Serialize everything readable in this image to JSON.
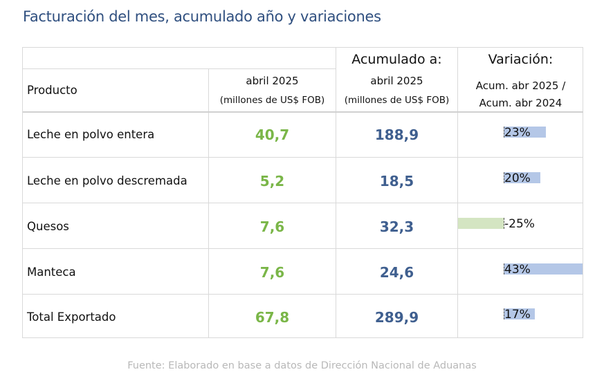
{
  "title": "Facturación del mes, acumulado año y variaciones",
  "header": {
    "producto": "Producto",
    "month_label": "abril 2025",
    "month_unit": "(millones de US$ FOB)",
    "acum_title": "Acumulado a:",
    "acum_label": "abril 2025",
    "acum_unit": "(millones de US$ FOB)",
    "var_title": "Variación:",
    "var_line1": "Acum. abr 2025 /",
    "var_line2": "Acum. abr 2024"
  },
  "rows": [
    {
      "product": "Leche en polvo entera",
      "month": "40,7",
      "acum": "188,9",
      "variation": "23%",
      "variation_value": 23
    },
    {
      "product": "Leche en polvo descremada",
      "month": "5,2",
      "acum": "18,5",
      "variation": "20%",
      "variation_value": 20
    },
    {
      "product": "Quesos",
      "month": "7,6",
      "acum": "32,3",
      "variation": "-25%",
      "variation_value": -25
    },
    {
      "product": "Manteca",
      "month": "7,6",
      "acum": "24,6",
      "variation": "43%",
      "variation_value": 43
    },
    {
      "product": "Total Exportado",
      "month": "67,8",
      "acum": "289,9",
      "variation": "17%",
      "variation_value": 17
    }
  ],
  "colors": {
    "title": "#2f4f7f",
    "month_values": "#7ab648",
    "acum_values": "#3f5f8f",
    "bar_positive": "#b4c7e7",
    "bar_negative": "#d4e5c2"
  },
  "source": "Fuente: Elaborado en base a datos de Dirección Nacional de Aduanas"
}
